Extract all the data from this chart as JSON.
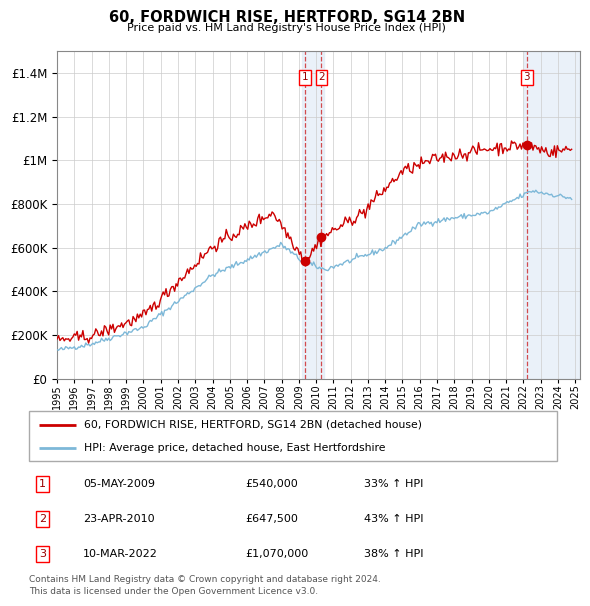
{
  "title": "60, FORDWICH RISE, HERTFORD, SG14 2BN",
  "subtitle": "Price paid vs. HM Land Registry's House Price Index (HPI)",
  "footer": "Contains HM Land Registry data © Crown copyright and database right 2024.\nThis data is licensed under the Open Government Licence v3.0.",
  "legend_line1": "60, FORDWICH RISE, HERTFORD, SG14 2BN (detached house)",
  "legend_line2": "HPI: Average price, detached house, East Hertfordshire",
  "transactions": [
    {
      "num": 1,
      "date": "05-MAY-2009",
      "price": 540000,
      "hpi_pct": "33% ↑ HPI",
      "year": 2009.35
    },
    {
      "num": 2,
      "date": "23-APR-2010",
      "price": 647500,
      "hpi_pct": "43% ↑ HPI",
      "year": 2010.31
    },
    {
      "num": 3,
      "date": "10-MAR-2022",
      "price": 1070000,
      "hpi_pct": "38% ↑ HPI",
      "year": 2022.19
    }
  ],
  "hpi_color": "#7db8d8",
  "price_color": "#cc0000",
  "ylim_max": 1500000,
  "xlim_start": 1995.0,
  "xlim_end": 2025.3,
  "background_highlight_color": "#dce8f5"
}
